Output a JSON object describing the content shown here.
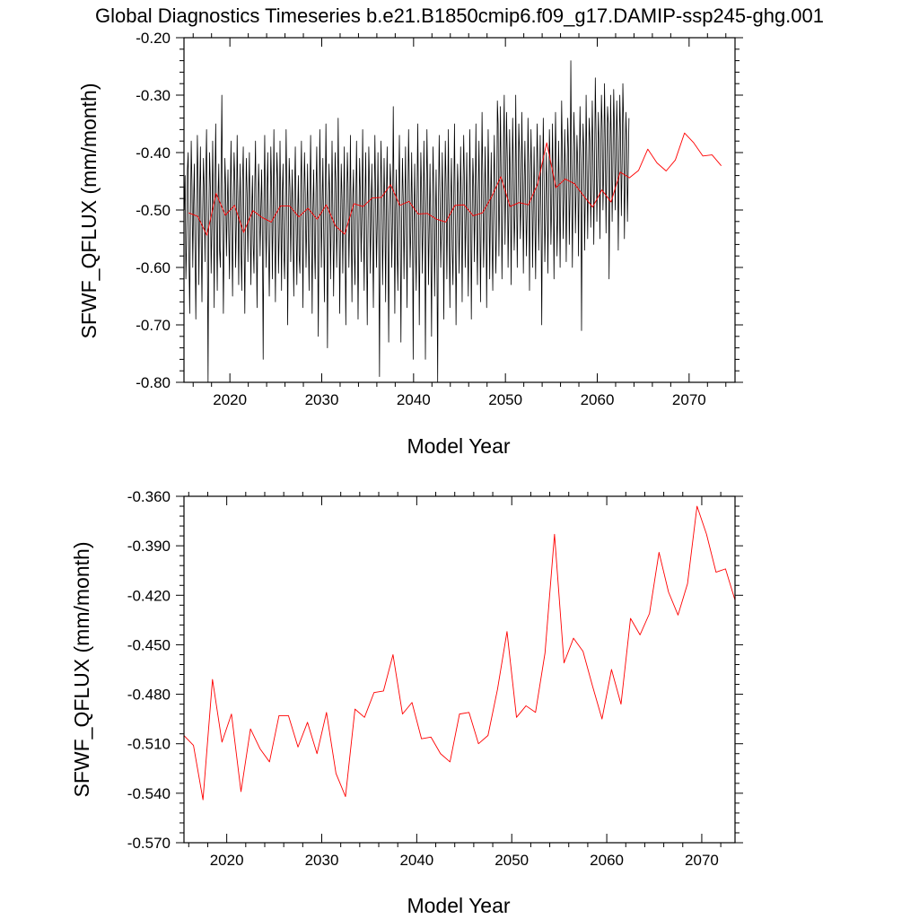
{
  "title": "Global Diagnostics Timeseries b.e21.B1850cmip6.f09_g17.DAMIP-ssp245-ghg.001",
  "colors": {
    "monthly": "#000000",
    "annual": "#ff0000"
  },
  "chart_data": [
    {
      "type": "line",
      "xlabel": "Model Year",
      "ylabel": "SFWF_QFLUX (mm/month)",
      "xlim": [
        2015,
        2075
      ],
      "ylim": [
        -0.8,
        -0.2
      ],
      "x_ticks": [
        2020,
        2030,
        2040,
        2050,
        2060,
        2070
      ],
      "x_tick_labels": [
        "2020",
        "2030",
        "2040",
        "2050",
        "2060",
        "2070"
      ],
      "y_ticks": [
        -0.8,
        -0.7,
        -0.6,
        -0.5,
        -0.4,
        -0.3,
        -0.2
      ],
      "y_tick_labels": [
        "-0.80",
        "-0.70",
        "-0.60",
        "-0.50",
        "-0.40",
        "-0.30",
        "-0.20"
      ],
      "grid": false,
      "series": [
        {
          "color": "#000000",
          "x_start": 2015.04,
          "x_step": 0.08333,
          "values": [
            -0.5,
            -0.44,
            -0.62,
            -0.56,
            -0.43,
            -0.4,
            -0.58,
            -0.68,
            -0.51,
            -0.38,
            -0.46,
            -0.6,
            -0.49,
            -0.42,
            -0.57,
            -0.69,
            -0.52,
            -0.37,
            -0.45,
            -0.63,
            -0.48,
            -0.39,
            -0.55,
            -0.66,
            -0.5,
            -0.41,
            -0.47,
            -0.59,
            -0.44,
            -0.36,
            -0.54,
            -0.8,
            -0.51,
            -0.4,
            -0.46,
            -0.61,
            -0.53,
            -0.38,
            -0.49,
            -0.67,
            -0.45,
            -0.35,
            -0.52,
            -0.64,
            -0.48,
            -0.42,
            -0.57,
            -0.6,
            -0.44,
            -0.3,
            -0.5,
            -0.68,
            -0.55,
            -0.41,
            -0.46,
            -0.58,
            -0.5,
            -0.43,
            -0.54,
            -0.62,
            -0.47,
            -0.38,
            -0.53,
            -0.65,
            -0.49,
            -0.4,
            -0.45,
            -0.6,
            -0.52,
            -0.37,
            -0.48,
            -0.63,
            -0.5,
            -0.42,
            -0.57,
            -0.64,
            -0.45,
            -0.39,
            -0.55,
            -0.68,
            -0.51,
            -0.41,
            -0.47,
            -0.59,
            -0.48,
            -0.4,
            -0.53,
            -0.63,
            -0.5,
            -0.44,
            -0.56,
            -0.61,
            -0.46,
            -0.38,
            -0.54,
            -0.67,
            -0.52,
            -0.42,
            -0.48,
            -0.58,
            -0.5,
            -0.43,
            -0.55,
            -0.76,
            -0.49,
            -0.37,
            -0.51,
            -0.6,
            -0.47,
            -0.4,
            -0.56,
            -0.65,
            -0.53,
            -0.39,
            -0.46,
            -0.62,
            -0.5,
            -0.36,
            -0.52,
            -0.66,
            -0.49,
            -0.4,
            -0.45,
            -0.61,
            -0.54,
            -0.38,
            -0.5,
            -0.64,
            -0.47,
            -0.42,
            -0.57,
            -0.62,
            -0.5,
            -0.36,
            -0.48,
            -0.7,
            -0.53,
            -0.41,
            -0.46,
            -0.59,
            -0.5,
            -0.43,
            -0.55,
            -0.65,
            -0.47,
            -0.39,
            -0.52,
            -0.63,
            -0.51,
            -0.44,
            -0.58,
            -0.61,
            -0.46,
            -0.38,
            -0.53,
            -0.67,
            -0.49,
            -0.4,
            -0.47,
            -0.6,
            -0.52,
            -0.42,
            -0.54,
            -0.64,
            -0.48,
            -0.37,
            -0.51,
            -0.68,
            -0.5,
            -0.43,
            -0.56,
            -0.62,
            -0.47,
            -0.39,
            -0.52,
            -0.72,
            -0.54,
            -0.36,
            -0.46,
            -0.6,
            -0.5,
            -0.41,
            -0.53,
            -0.66,
            -0.49,
            -0.35,
            -0.48,
            -0.74,
            -0.55,
            -0.42,
            -0.47,
            -0.62,
            -0.51,
            -0.38,
            -0.5,
            -0.65,
            -0.53,
            -0.4,
            -0.45,
            -0.6,
            -0.52,
            -0.34,
            -0.49,
            -0.68,
            -0.54,
            -0.42,
            -0.48,
            -0.61,
            -0.5,
            -0.39,
            -0.56,
            -0.7,
            -0.51,
            -0.4,
            -0.46,
            -0.6,
            -0.52,
            -0.37,
            -0.53,
            -0.66,
            -0.48,
            -0.43,
            -0.57,
            -0.63,
            -0.49,
            -0.38,
            -0.51,
            -0.69,
            -0.54,
            -0.41,
            -0.47,
            -0.59,
            -0.5,
            -0.36,
            -0.52,
            -0.64,
            -0.48,
            -0.4,
            -0.55,
            -0.7,
            -0.53,
            -0.39,
            -0.46,
            -0.61,
            -0.51,
            -0.42,
            -0.54,
            -0.67,
            -0.5,
            -0.37,
            -0.48,
            -0.6,
            -0.52,
            -0.4,
            -0.56,
            -0.79,
            -0.49,
            -0.38,
            -0.47,
            -0.63,
            -0.53,
            -0.41,
            -0.5,
            -0.66,
            -0.48,
            -0.39,
            -0.55,
            -0.73,
            -0.51,
            -0.42,
            -0.46,
            -0.6,
            -0.52,
            -0.32,
            -0.49,
            -0.68,
            -0.5,
            -0.43,
            -0.57,
            -0.64,
            -0.47,
            -0.37,
            -0.53,
            -0.73,
            -0.52,
            -0.41,
            -0.48,
            -0.62,
            -0.5,
            -0.39,
            -0.54,
            -0.67,
            -0.49,
            -0.36,
            -0.46,
            -0.6,
            -0.53,
            -0.4,
            -0.51,
            -0.76,
            -0.52,
            -0.42,
            -0.56,
            -0.64,
            -0.48,
            -0.35,
            -0.5,
            -0.7,
            -0.54,
            -0.4,
            -0.47,
            -0.61,
            -0.52,
            -0.38,
            -0.49,
            -0.76,
            -0.51,
            -0.36,
            -0.46,
            -0.63,
            -0.53,
            -0.42,
            -0.55,
            -0.72,
            -0.5,
            -0.39,
            -0.48,
            -0.65,
            -0.52,
            -0.43,
            -0.58,
            -0.8,
            -0.49,
            -0.37,
            -0.47,
            -0.6,
            -0.53,
            -0.4,
            -0.5,
            -0.69,
            -0.52,
            -0.38,
            -0.46,
            -0.62,
            -0.5,
            -0.36,
            -0.54,
            -0.67,
            -0.49,
            -0.41,
            -0.57,
            -0.63,
            -0.48,
            -0.35,
            -0.51,
            -0.7,
            -0.55,
            -0.42,
            -0.47,
            -0.61,
            -0.52,
            -0.39,
            -0.5,
            -0.66,
            -0.48,
            -0.37,
            -0.45,
            -0.6,
            -0.51,
            -0.4,
            -0.54,
            -0.65,
            -0.5,
            -0.36,
            -0.49,
            -0.69,
            -0.52,
            -0.41,
            -0.46,
            -0.59,
            -0.48,
            -0.35,
            -0.53,
            -0.63,
            -0.47,
            -0.38,
            -0.51,
            -0.66,
            -0.5,
            -0.33,
            -0.45,
            -0.6,
            -0.52,
            -0.39,
            -0.48,
            -0.67,
            -0.51,
            -0.36,
            -0.46,
            -0.62,
            -0.49,
            -0.4,
            -0.55,
            -0.64,
            -0.47,
            -0.37,
            -0.5,
            -0.61,
            -0.53,
            -0.31,
            -0.35,
            -0.58,
            -0.48,
            -0.32,
            -0.44,
            -0.62,
            -0.5,
            -0.38,
            -0.3,
            -0.56,
            -0.46,
            -0.33,
            -0.41,
            -0.6,
            -0.5,
            -0.36,
            -0.45,
            -0.63,
            -0.48,
            -0.34,
            -0.43,
            -0.57,
            -0.51,
            -0.3,
            -0.46,
            -0.6,
            -0.47,
            -0.35,
            -0.4,
            -0.55,
            -0.49,
            -0.33,
            -0.44,
            -0.61,
            -0.46,
            -0.38,
            -0.48,
            -0.58,
            -0.5,
            -0.34,
            -0.42,
            -0.64,
            -0.47,
            -0.36,
            -0.45,
            -0.6,
            -0.49,
            -0.39,
            -0.51,
            -0.62,
            -0.46,
            -0.35,
            -0.43,
            -0.57,
            -0.48,
            -0.37,
            -0.5,
            -0.7,
            -0.47,
            -0.34,
            -0.44,
            -0.59,
            -0.51,
            -0.4,
            -0.46,
            -0.61,
            -0.48,
            -0.36,
            -0.42,
            -0.56,
            -0.49,
            -0.35,
            -0.45,
            -0.62,
            -0.46,
            -0.33,
            -0.43,
            -0.58,
            -0.5,
            -0.38,
            -0.47,
            -0.6,
            -0.45,
            -0.31,
            -0.41,
            -0.55,
            -0.48,
            -0.36,
            -0.44,
            -0.59,
            -0.46,
            -0.34,
            -0.4,
            -0.56,
            -0.47,
            -0.24,
            -0.43,
            -0.6,
            -0.45,
            -0.33,
            -0.39,
            -0.54,
            -0.46,
            -0.37,
            -0.42,
            -0.58,
            -0.44,
            -0.32,
            -0.41,
            -0.71,
            -0.45,
            -0.35,
            -0.4,
            -0.57,
            -0.47,
            -0.3,
            -0.42,
            -0.55,
            -0.44,
            -0.34,
            -0.38,
            -0.53,
            -0.45,
            -0.31,
            -0.4,
            -0.56,
            -0.43,
            -0.27,
            -0.37,
            -0.52,
            -0.44,
            -0.33,
            -0.39,
            -0.55,
            -0.42,
            -0.3,
            -0.36,
            -0.5,
            -0.43,
            -0.28,
            -0.38,
            -0.54,
            -0.41,
            -0.32,
            -0.35,
            -0.62,
            -0.44,
            -0.3,
            -0.39,
            -0.52,
            -0.42,
            -0.29,
            -0.36,
            -0.5,
            -0.41,
            -0.31,
            -0.38,
            -0.57,
            -0.43,
            -0.3,
            -0.37,
            -0.51,
            -0.42,
            -0.28,
            -0.35,
            -0.55,
            -0.44,
            -0.33,
            -0.38,
            -0.52,
            -0.43,
            -0.34
          ]
        },
        {
          "color": "#ff0000",
          "x_start": 2015.5,
          "x_step": 1,
          "values": [
            -0.505,
            -0.511,
            -0.544,
            -0.471,
            -0.509,
            -0.492,
            -0.539,
            -0.501,
            -0.513,
            -0.521,
            -0.493,
            -0.493,
            -0.512,
            -0.497,
            -0.516,
            -0.491,
            -0.528,
            -0.542,
            -0.489,
            -0.494,
            -0.479,
            -0.478,
            -0.456,
            -0.492,
            -0.485,
            -0.507,
            -0.506,
            -0.516,
            -0.521,
            -0.492,
            -0.491,
            -0.51,
            -0.505,
            -0.477,
            -0.442,
            -0.494,
            -0.487,
            -0.491,
            -0.455,
            -0.383,
            -0.461,
            -0.446,
            -0.454,
            -0.475,
            -0.495,
            -0.465,
            -0.486,
            -0.434,
            -0.444,
            -0.431,
            -0.394,
            -0.418,
            -0.432,
            -0.413,
            -0.366,
            -0.383,
            -0.406,
            -0.404,
            -0.423
          ]
        }
      ]
    },
    {
      "type": "line",
      "xlabel": "Model Year",
      "ylabel": "SFWF_QFLUX (mm/month)",
      "xlim": [
        2015.5,
        2073.5
      ],
      "ylim": [
        -0.57,
        -0.36
      ],
      "x_ticks": [
        2020,
        2030,
        2040,
        2050,
        2060,
        2070
      ],
      "x_tick_labels": [
        "2020",
        "2030",
        "2040",
        "2050",
        "2060",
        "2070"
      ],
      "y_ticks": [
        -0.57,
        -0.54,
        -0.51,
        -0.48,
        -0.45,
        -0.42,
        -0.39,
        -0.36
      ],
      "y_tick_labels": [
        "-0.570",
        "-0.540",
        "-0.510",
        "-0.480",
        "-0.450",
        "-0.420",
        "-0.390",
        "-0.360"
      ],
      "grid": false,
      "series": [
        {
          "color": "#ff0000",
          "x_start": 2015.5,
          "x_step": 1,
          "values": [
            -0.505,
            -0.511,
            -0.544,
            -0.471,
            -0.509,
            -0.492,
            -0.539,
            -0.501,
            -0.513,
            -0.521,
            -0.493,
            -0.493,
            -0.512,
            -0.497,
            -0.516,
            -0.491,
            -0.528,
            -0.542,
            -0.489,
            -0.494,
            -0.479,
            -0.478,
            -0.456,
            -0.492,
            -0.485,
            -0.507,
            -0.506,
            -0.516,
            -0.521,
            -0.492,
            -0.491,
            -0.51,
            -0.505,
            -0.477,
            -0.442,
            -0.494,
            -0.487,
            -0.491,
            -0.455,
            -0.383,
            -0.461,
            -0.446,
            -0.454,
            -0.475,
            -0.495,
            -0.465,
            -0.486,
            -0.434,
            -0.444,
            -0.431,
            -0.394,
            -0.418,
            -0.432,
            -0.413,
            -0.366,
            -0.383,
            -0.406,
            -0.404,
            -0.423
          ]
        }
      ]
    }
  ]
}
